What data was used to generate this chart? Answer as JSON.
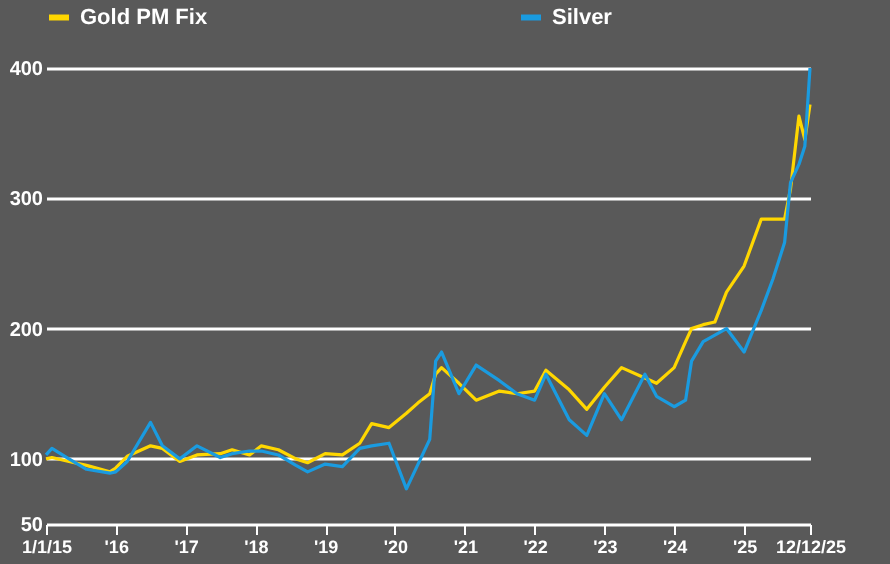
{
  "chart_data": {
    "type": "line",
    "x": [
      "2015-01-01",
      "2015-02-01",
      "2015-05-01",
      "2015-08-01",
      "2015-12-01",
      "2016-01-01",
      "2016-03-01",
      "2016-07-01",
      "2016-09-01",
      "2016-12-01",
      "2017-03-01",
      "2017-07-01",
      "2017-09-01",
      "2017-12-01",
      "2018-02-01",
      "2018-05-01",
      "2018-08-01",
      "2018-10-01",
      "2019-01-01",
      "2019-04-01",
      "2019-07-01",
      "2019-09-01",
      "2019-12-01",
      "2020-03-01",
      "2020-05-01",
      "2020-07-01",
      "2020-08-01",
      "2020-09-01",
      "2020-12-01",
      "2021-03-01",
      "2021-07-01",
      "2021-10-01",
      "2022-01-01",
      "2022-03-01",
      "2022-07-01",
      "2022-10-01",
      "2023-01-01",
      "2023-04-01",
      "2023-08-01",
      "2023-10-01",
      "2024-01-01",
      "2024-03-01",
      "2024-04-01",
      "2024-06-01",
      "2024-08-01",
      "2024-10-01",
      "2025-01-01",
      "2025-04-01",
      "2025-06-01",
      "2025-08-01",
      "2025-09-01",
      "2025-10-15",
      "2025-11-15",
      "2025-12-12"
    ],
    "series": [
      {
        "name": "Gold PM Fix",
        "color": "#ffd700",
        "values": [
          100,
          101,
          98,
          95,
          90,
          93,
          102,
          110,
          108,
          98,
          103,
          104,
          107,
          103,
          110,
          107,
          100,
          97,
          104,
          103,
          112,
          127,
          124,
          135,
          143,
          150,
          165,
          170,
          158,
          145,
          152,
          150,
          152,
          168,
          153,
          138,
          155,
          170,
          162,
          158,
          170,
          190,
          200,
          203,
          205,
          228,
          248,
          284,
          284,
          284,
          307,
          363,
          345,
          372
        ]
      },
      {
        "name": "Silver",
        "color": "#1a9be0",
        "values": [
          103,
          108,
          100,
          92,
          89,
          90,
          98,
          128,
          110,
          100,
          110,
          101,
          104,
          106,
          106,
          103,
          95,
          90,
          96,
          94,
          108,
          110,
          112,
          77,
          96,
          115,
          175,
          182,
          150,
          172,
          160,
          150,
          145,
          165,
          130,
          118,
          150,
          130,
          165,
          148,
          140,
          145,
          175,
          190,
          195,
          200,
          182,
          214,
          238,
          266,
          312,
          326,
          340,
          400
        ]
      }
    ],
    "xlim": [
      "2015-01-01",
      "2025-12-12"
    ],
    "xticks": [
      {
        "value": "2015-01-01",
        "label": "1/1/15"
      },
      {
        "value": "2016-01-01",
        "label": "'16"
      },
      {
        "value": "2017-01-01",
        "label": "'17"
      },
      {
        "value": "2018-01-01",
        "label": "'18"
      },
      {
        "value": "2019-01-01",
        "label": "'19"
      },
      {
        "value": "2020-01-01",
        "label": "'20"
      },
      {
        "value": "2021-01-01",
        "label": "'21"
      },
      {
        "value": "2022-01-01",
        "label": "'22"
      },
      {
        "value": "2023-01-01",
        "label": "'23"
      },
      {
        "value": "2024-01-01",
        "label": "'24"
      },
      {
        "value": "2025-01-01",
        "label": "'25"
      },
      {
        "value": "2025-12-12",
        "label": "12/12/25"
      }
    ],
    "ylim": [
      50,
      400
    ],
    "yticks": [
      50,
      100,
      200,
      300,
      400
    ],
    "grid": "y",
    "legend": "top",
    "marker": "none",
    "line_style": "solid"
  }
}
